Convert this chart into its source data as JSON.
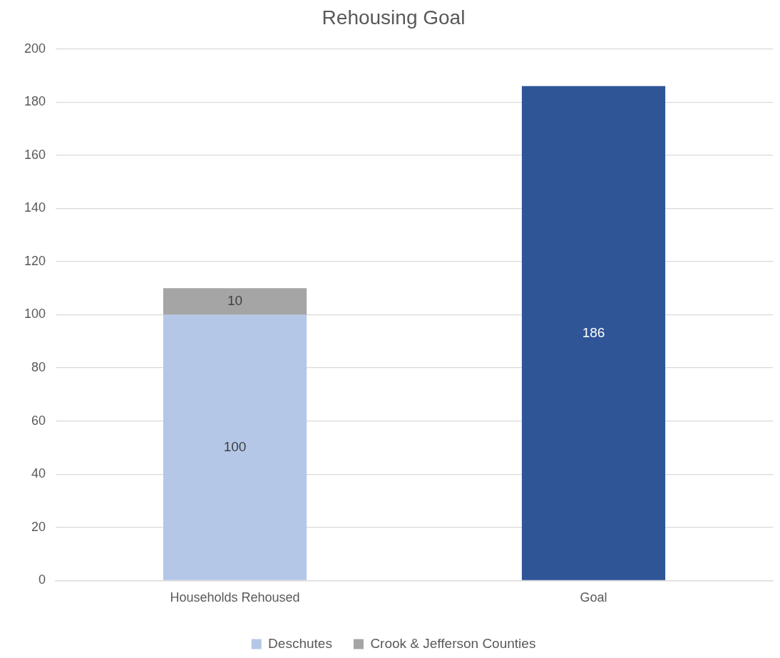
{
  "chart_data": {
    "type": "bar",
    "title": "Rehousing Goal",
    "categories": [
      "Households Rehoused",
      "Goal"
    ],
    "stacked": true,
    "series": [
      {
        "name": "Deschutes",
        "color": "#b4c7e7",
        "values": [
          100,
          null
        ]
      },
      {
        "name": "Crook & Jefferson Counties",
        "color": "#a5a5a5",
        "values": [
          10,
          null
        ]
      },
      {
        "color": "#2f5597",
        "values": [
          null,
          186
        ]
      }
    ],
    "ylim": [
      0,
      200
    ],
    "yticks": [
      0,
      20,
      40,
      60,
      80,
      100,
      120,
      140,
      160,
      180,
      200
    ],
    "grid": "y",
    "legend": "bottom",
    "data_labels": true
  }
}
